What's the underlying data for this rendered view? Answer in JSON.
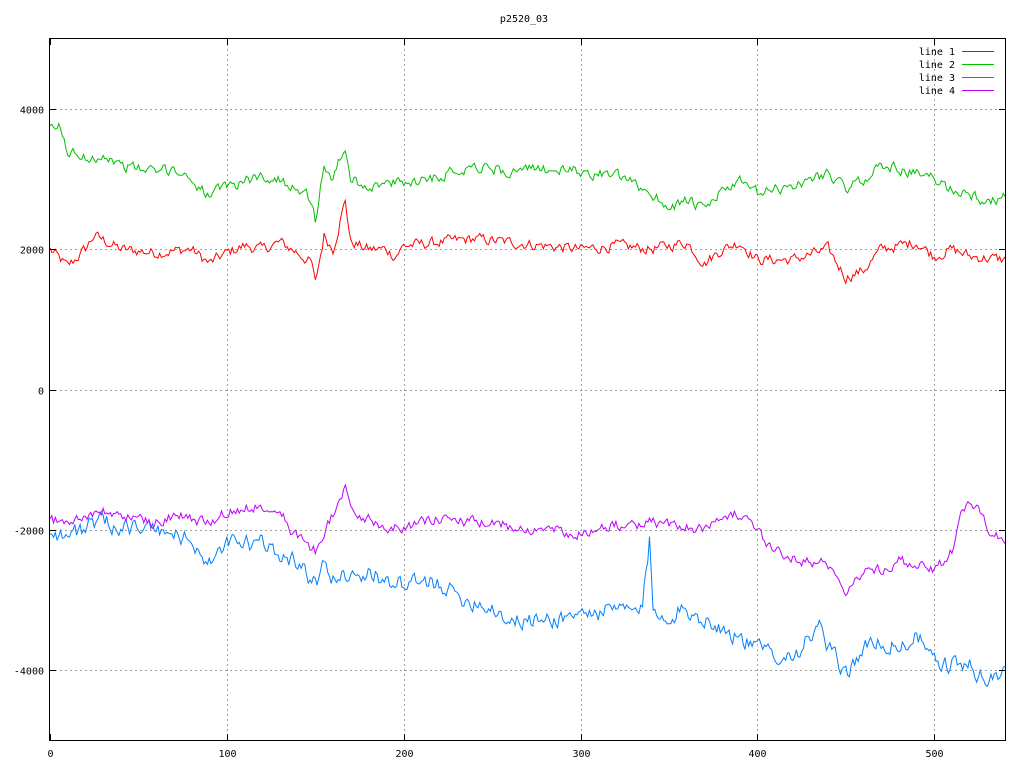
{
  "chart_data": {
    "type": "line",
    "title": "p2520_03",
    "xlabel": "",
    "ylabel": "",
    "xlim": [
      0,
      540
    ],
    "ylim": [
      -5000,
      5000
    ],
    "grid": true,
    "legend_position": "top-right",
    "x_ticks": [
      0,
      100,
      200,
      300,
      400,
      500
    ],
    "x_tick_labels": [
      "0",
      "100",
      "200",
      "300",
      "400",
      "500"
    ],
    "y_ticks": [
      4000,
      2000,
      0,
      -2000,
      -4000
    ],
    "y_tick_labels": [
      "4000",
      "2000",
      "0",
      "-2000",
      "-4000"
    ],
    "series": [
      {
        "name": "line 1",
        "color": "#ff0000",
        "anchors": [
          [
            0,
            2000
          ],
          [
            10,
            1750
          ],
          [
            20,
            2000
          ],
          [
            25,
            2200
          ],
          [
            40,
            2000
          ],
          [
            60,
            1950
          ],
          [
            80,
            2000
          ],
          [
            90,
            1800
          ],
          [
            100,
            1950
          ],
          [
            110,
            2050
          ],
          [
            120,
            2000
          ],
          [
            130,
            2100
          ],
          [
            140,
            1950
          ],
          [
            148,
            1800
          ],
          [
            150,
            1500
          ],
          [
            155,
            2200
          ],
          [
            160,
            2000
          ],
          [
            165,
            2500
          ],
          [
            167,
            2700
          ],
          [
            170,
            2100
          ],
          [
            180,
            2000
          ],
          [
            190,
            2000
          ],
          [
            195,
            1900
          ],
          [
            200,
            2050
          ],
          [
            220,
            2100
          ],
          [
            240,
            2150
          ],
          [
            260,
            2100
          ],
          [
            280,
            2050
          ],
          [
            300,
            2000
          ],
          [
            320,
            2050
          ],
          [
            340,
            2000
          ],
          [
            360,
            2100
          ],
          [
            370,
            1800
          ],
          [
            380,
            2000
          ],
          [
            390,
            2100
          ],
          [
            400,
            1850
          ],
          [
            420,
            1850
          ],
          [
            440,
            2000
          ],
          [
            450,
            1600
          ],
          [
            460,
            1700
          ],
          [
            470,
            2000
          ],
          [
            480,
            2050
          ],
          [
            490,
            2100
          ],
          [
            500,
            1900
          ],
          [
            510,
            2000
          ],
          [
            520,
            1900
          ],
          [
            540,
            1850
          ]
        ]
      },
      {
        "name": "line 2",
        "color": "#00c000",
        "anchors": [
          [
            0,
            3700
          ],
          [
            5,
            3750
          ],
          [
            10,
            3400
          ],
          [
            20,
            3300
          ],
          [
            30,
            3350
          ],
          [
            40,
            3200
          ],
          [
            60,
            3100
          ],
          [
            70,
            3150
          ],
          [
            80,
            3000
          ],
          [
            90,
            2750
          ],
          [
            100,
            2900
          ],
          [
            120,
            3050
          ],
          [
            140,
            2900
          ],
          [
            148,
            2700
          ],
          [
            150,
            2400
          ],
          [
            155,
            3200
          ],
          [
            160,
            3000
          ],
          [
            165,
            3350
          ],
          [
            167,
            3450
          ],
          [
            170,
            3000
          ],
          [
            180,
            2900
          ],
          [
            200,
            2950
          ],
          [
            220,
            3050
          ],
          [
            240,
            3200
          ],
          [
            260,
            3100
          ],
          [
            280,
            3150
          ],
          [
            300,
            3100
          ],
          [
            320,
            3050
          ],
          [
            340,
            2800
          ],
          [
            350,
            2600
          ],
          [
            360,
            2700
          ],
          [
            370,
            2550
          ],
          [
            380,
            2850
          ],
          [
            390,
            2950
          ],
          [
            400,
            2800
          ],
          [
            420,
            2900
          ],
          [
            440,
            3100
          ],
          [
            450,
            2850
          ],
          [
            460,
            3000
          ],
          [
            470,
            3200
          ],
          [
            480,
            3150
          ],
          [
            500,
            3000
          ],
          [
            510,
            2850
          ],
          [
            520,
            2800
          ],
          [
            530,
            2650
          ],
          [
            540,
            2750
          ]
        ]
      },
      {
        "name": "line 3",
        "color": "#0080ff",
        "anchors": [
          [
            0,
            -2000
          ],
          [
            10,
            -2100
          ],
          [
            20,
            -1950
          ],
          [
            30,
            -1900
          ],
          [
            40,
            -1950
          ],
          [
            60,
            -2000
          ],
          [
            80,
            -2150
          ],
          [
            90,
            -2500
          ],
          [
            100,
            -2200
          ],
          [
            120,
            -2200
          ],
          [
            140,
            -2450
          ],
          [
            150,
            -2800
          ],
          [
            155,
            -2500
          ],
          [
            160,
            -2700
          ],
          [
            170,
            -2600
          ],
          [
            190,
            -2700
          ],
          [
            200,
            -2800
          ],
          [
            220,
            -2750
          ],
          [
            230,
            -2950
          ],
          [
            250,
            -3100
          ],
          [
            260,
            -3300
          ],
          [
            280,
            -3300
          ],
          [
            300,
            -3200
          ],
          [
            320,
            -3150
          ],
          [
            335,
            -3150
          ],
          [
            339,
            -2150
          ],
          [
            341,
            -3200
          ],
          [
            350,
            -3200
          ],
          [
            360,
            -3150
          ],
          [
            380,
            -3400
          ],
          [
            400,
            -3700
          ],
          [
            420,
            -3800
          ],
          [
            435,
            -3400
          ],
          [
            440,
            -3700
          ],
          [
            450,
            -4050
          ],
          [
            460,
            -3700
          ],
          [
            470,
            -3600
          ],
          [
            480,
            -3700
          ],
          [
            490,
            -3500
          ],
          [
            500,
            -3900
          ],
          [
            520,
            -3950
          ],
          [
            530,
            -4150
          ],
          [
            540,
            -4050
          ]
        ]
      },
      {
        "name": "line 4",
        "color": "#c000ff",
        "anchors": [
          [
            0,
            -1850
          ],
          [
            10,
            -1900
          ],
          [
            20,
            -1800
          ],
          [
            30,
            -1750
          ],
          [
            40,
            -1800
          ],
          [
            60,
            -1900
          ],
          [
            70,
            -1800
          ],
          [
            90,
            -1900
          ],
          [
            100,
            -1750
          ],
          [
            110,
            -1700
          ],
          [
            120,
            -1650
          ],
          [
            130,
            -1650
          ],
          [
            135,
            -2000
          ],
          [
            140,
            -2100
          ],
          [
            150,
            -2300
          ],
          [
            155,
            -2000
          ],
          [
            160,
            -1800
          ],
          [
            165,
            -1500
          ],
          [
            167,
            -1300
          ],
          [
            170,
            -1750
          ],
          [
            180,
            -1850
          ],
          [
            190,
            -1950
          ],
          [
            200,
            -1950
          ],
          [
            220,
            -1850
          ],
          [
            240,
            -1900
          ],
          [
            260,
            -1950
          ],
          [
            280,
            -2000
          ],
          [
            300,
            -2050
          ],
          [
            320,
            -1950
          ],
          [
            340,
            -1900
          ],
          [
            360,
            -1950
          ],
          [
            370,
            -2000
          ],
          [
            380,
            -1750
          ],
          [
            390,
            -1800
          ],
          [
            400,
            -2050
          ],
          [
            410,
            -2300
          ],
          [
            420,
            -2400
          ],
          [
            430,
            -2450
          ],
          [
            440,
            -2500
          ],
          [
            450,
            -2850
          ],
          [
            460,
            -2600
          ],
          [
            470,
            -2550
          ],
          [
            480,
            -2450
          ],
          [
            490,
            -2500
          ],
          [
            500,
            -2600
          ],
          [
            510,
            -2300
          ],
          [
            515,
            -1700
          ],
          [
            520,
            -1650
          ],
          [
            525,
            -1700
          ],
          [
            530,
            -2000
          ],
          [
            540,
            -2200
          ]
        ]
      }
    ]
  }
}
